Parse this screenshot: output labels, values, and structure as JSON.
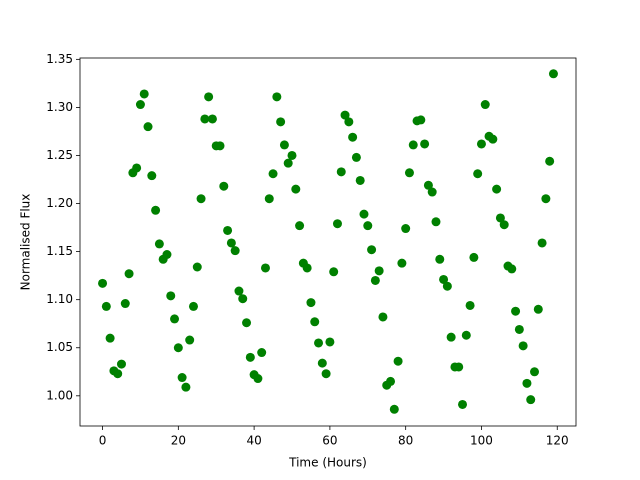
{
  "chart_data": {
    "type": "scatter",
    "xlabel": "Time (Hours)",
    "ylabel": "Normalised Flux",
    "x": [
      0,
      1,
      2,
      3,
      4,
      5,
      6,
      7,
      8,
      9,
      10,
      11,
      12,
      13,
      14,
      15,
      16,
      17,
      18,
      19,
      20,
      21,
      22,
      23,
      24,
      25,
      26,
      27,
      28,
      29,
      30,
      31,
      32,
      33,
      34,
      35,
      36,
      37,
      38,
      39,
      40,
      41,
      42,
      43,
      44,
      45,
      46,
      47,
      48,
      49,
      50,
      51,
      52,
      53,
      54,
      55,
      56,
      57,
      58,
      59,
      60,
      61,
      62,
      63,
      64,
      65,
      66,
      67,
      68,
      69,
      70,
      71,
      72,
      73,
      74,
      75,
      76,
      77,
      78,
      79,
      80,
      81,
      82,
      83,
      84,
      85,
      86,
      87,
      88,
      89,
      90,
      91,
      92,
      93,
      94,
      95,
      96,
      97,
      98,
      99,
      100,
      101,
      102,
      103,
      104,
      105,
      106,
      107,
      108,
      109,
      110,
      111,
      112,
      113,
      114,
      115,
      116,
      117,
      118,
      119
    ],
    "series": [
      {
        "color": "#008000",
        "values": [
          1.117,
          1.093,
          1.06,
          1.026,
          1.023,
          1.033,
          1.096,
          1.127,
          1.232,
          1.237,
          1.303,
          1.314,
          1.28,
          1.229,
          1.193,
          1.158,
          1.142,
          1.147,
          1.104,
          1.08,
          1.05,
          1.019,
          1.009,
          1.058,
          1.093,
          1.134,
          1.205,
          1.288,
          1.311,
          1.288,
          1.26,
          1.26,
          1.218,
          1.172,
          1.159,
          1.151,
          1.109,
          1.101,
          1.076,
          1.04,
          1.022,
          1.018,
          1.045,
          1.133,
          1.205,
          1.231,
          1.311,
          1.285,
          1.261,
          1.242,
          1.25,
          1.215,
          1.177,
          1.138,
          1.133,
          1.097,
          1.077,
          1.055,
          1.034,
          1.023,
          1.056,
          1.129,
          1.179,
          1.233,
          1.292,
          1.285,
          1.269,
          1.248,
          1.224,
          1.189,
          1.177,
          1.152,
          1.12,
          1.13,
          1.082,
          1.011,
          1.015,
          0.986,
          1.036,
          1.138,
          1.174,
          1.232,
          1.261,
          1.286,
          1.287,
          1.262,
          1.219,
          1.212,
          1.181,
          1.142,
          1.121,
          1.114,
          1.061,
          1.03,
          1.03,
          0.991,
          1.063,
          1.094,
          1.144,
          1.231,
          1.262,
          1.303,
          1.27,
          1.267,
          1.215,
          1.185,
          1.178,
          1.135,
          1.132,
          1.088,
          1.069,
          1.052,
          1.013,
          0.996,
          1.025,
          1.09,
          1.159,
          1.205,
          1.244,
          1.335
        ]
      }
    ],
    "xlim": [
      -5.95,
      124.95
    ],
    "xticks": [
      0,
      20,
      40,
      60,
      80,
      100,
      120
    ],
    "ylim": [
      0.9686,
      1.3514
    ],
    "yticks": [
      {
        "value": 1,
        "label": "1.00"
      },
      1.05,
      {
        "value": 1.1,
        "label": "1.10"
      },
      1.15,
      {
        "value": 1.2,
        "label": "1.20"
      },
      1.25,
      {
        "value": 1.3,
        "label": "1.30"
      },
      1.35
    ]
  }
}
